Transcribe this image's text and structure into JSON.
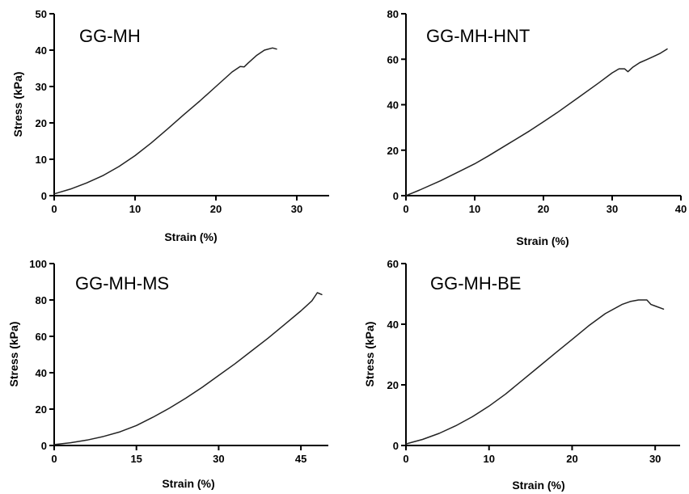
{
  "chart_data": [
    {
      "type": "line",
      "title": "GG-MH",
      "xlabel": "Strain (%)",
      "ylabel": "Stress (kPa)",
      "xlim": [
        0,
        34
      ],
      "ylim": [
        0,
        50
      ],
      "xticks": [
        0,
        10,
        20,
        30
      ],
      "yticks": [
        0,
        10,
        20,
        30,
        40,
        50
      ],
      "series": [
        {
          "x": [
            0,
            2,
            4,
            6,
            8,
            10,
            12,
            14,
            16,
            18,
            20,
            22,
            23,
            23.5,
            24,
            25,
            26,
            27,
            27.5
          ],
          "values": [
            0.5,
            1.8,
            3.5,
            5.5,
            8.0,
            11.0,
            14.5,
            18.3,
            22.2,
            26.0,
            30.0,
            34.0,
            35.5,
            35.4,
            36.5,
            38.5,
            40.0,
            40.6,
            40.3
          ]
        }
      ]
    },
    {
      "type": "line",
      "title": "GG-MH-HNT",
      "xlabel": "Strain (%)",
      "ylabel": "",
      "xlim": [
        0,
        40
      ],
      "ylim": [
        0,
        80
      ],
      "xticks": [
        0,
        10,
        20,
        30,
        40
      ],
      "yticks": [
        0,
        20,
        40,
        60,
        80
      ],
      "series": [
        {
          "x": [
            0,
            2,
            5,
            8,
            10,
            12,
            15,
            18,
            20,
            22,
            25,
            28,
            30,
            31,
            31.8,
            32.3,
            33,
            34,
            35,
            36,
            37,
            38
          ],
          "values": [
            0,
            2.5,
            6.5,
            11.0,
            14.0,
            17.5,
            23.0,
            28.5,
            32.5,
            36.5,
            43.0,
            49.5,
            54.0,
            55.8,
            55.8,
            54.5,
            56.5,
            58.5,
            59.8,
            61.2,
            62.6,
            64.5
          ]
        }
      ]
    },
    {
      "type": "line",
      "title": "GG-MH-MS",
      "xlabel": "Strain (%)",
      "ylabel": "Stress (kPa)",
      "xlim": [
        0,
        50
      ],
      "ylim": [
        0,
        100
      ],
      "xticks": [
        0,
        15,
        30,
        45
      ],
      "yticks": [
        0,
        20,
        40,
        60,
        80,
        100
      ],
      "series": [
        {
          "x": [
            0,
            3,
            6,
            9,
            12,
            15,
            18,
            21,
            24,
            27,
            30,
            33,
            36,
            39,
            42,
            45,
            47,
            48,
            48.8
          ],
          "values": [
            0.5,
            1.5,
            3.0,
            5.0,
            7.5,
            11.0,
            15.5,
            20.5,
            26.0,
            32.0,
            38.5,
            45.0,
            52.0,
            59.0,
            66.5,
            74.0,
            79.5,
            84.0,
            83.0
          ]
        }
      ]
    },
    {
      "type": "line",
      "title": "GG-MH-BE",
      "xlabel": "Strain (%)",
      "ylabel": "Stress (kPa)",
      "xlim": [
        0,
        33
      ],
      "ylim": [
        0,
        60
      ],
      "xticks": [
        0,
        10,
        20,
        30
      ],
      "yticks": [
        0,
        20,
        40,
        60
      ],
      "series": [
        {
          "x": [
            0,
            2,
            4,
            6,
            8,
            10,
            12,
            14,
            16,
            18,
            20,
            22,
            24,
            26,
            27,
            28,
            29,
            29.5,
            30,
            31
          ],
          "values": [
            0.5,
            2.0,
            4.0,
            6.5,
            9.5,
            13.0,
            17.0,
            21.5,
            26.0,
            30.5,
            35.0,
            39.5,
            43.5,
            46.5,
            47.5,
            48.0,
            48.0,
            46.5,
            46.0,
            45.0
          ]
        }
      ]
    }
  ]
}
